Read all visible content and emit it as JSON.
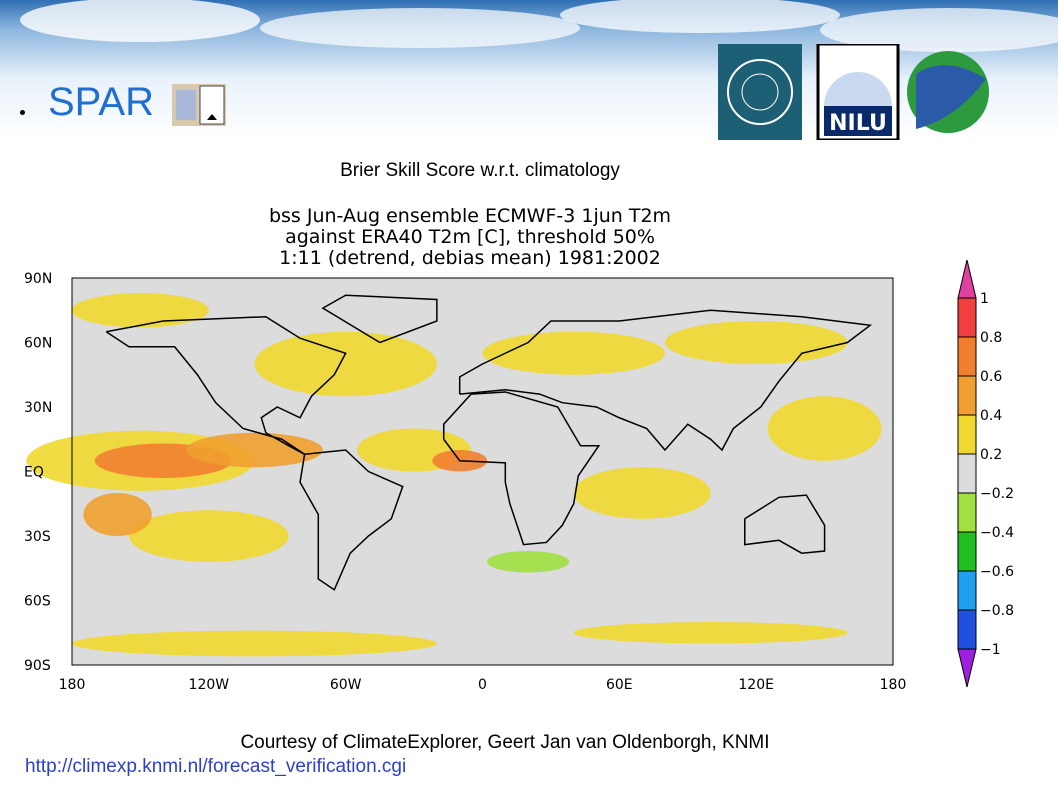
{
  "header": {
    "title": "SPAR",
    "logos": {
      "nilu": "NILU"
    }
  },
  "figure": {
    "caption": "Brier Skill Score w.r.t. climatology",
    "plot": {
      "title_lines": [
        "bss Jun-Aug ensemble ECMWF-3 1jun T2m",
        "against ERA40 T2m [C], threshold 50%",
        "1:11 (detrend, debias mean) 1981:2002"
      ],
      "lat_labels": [
        "90N",
        "60N",
        "30N",
        "EQ",
        "30S",
        "60S",
        "90S"
      ],
      "lon_labels": [
        "180",
        "120W",
        "60W",
        "0",
        "60E",
        "120E",
        "180"
      ],
      "colorbar_labels": [
        "1",
        "0.8",
        "0.6",
        "0.4",
        "0.2",
        "−0.2",
        "−0.4",
        "−0.6",
        "−0.8",
        "−1"
      ]
    }
  },
  "footer": {
    "credit": "Courtesy of ClimateExplorer, Geert Jan van Oldenborgh, KNMI",
    "link": "http://climexp.knmi.nl/forecast_verification.cgi"
  }
}
